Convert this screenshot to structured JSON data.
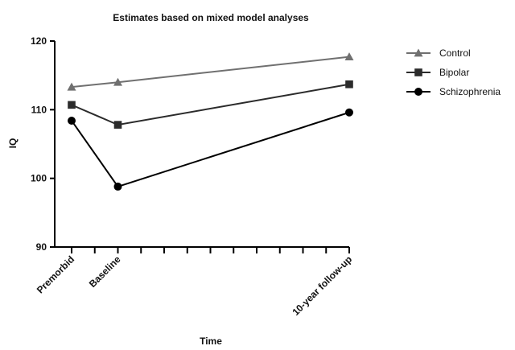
{
  "chart_data": {
    "type": "line",
    "title": "Estimates based on mixed model analyses",
    "xlabel": "Time",
    "ylabel": "IQ",
    "ylim": [
      90,
      120
    ],
    "yticks": [
      90,
      100,
      110,
      120
    ],
    "x_span": [
      0,
      12
    ],
    "categories": [
      {
        "label": "Premorbid",
        "x": 0
      },
      {
        "label": "Baseline",
        "x": 2
      },
      {
        "label": "10-year follow-up",
        "x": 12
      }
    ],
    "minor_x_ticks": [
      0,
      1,
      2,
      3,
      4,
      5,
      6,
      7,
      8,
      9,
      10,
      11,
      12
    ],
    "grid": false,
    "legend_position": "top-right",
    "series": [
      {
        "name": "Control",
        "marker": "triangle",
        "color": "#707070",
        "x": [
          0,
          2,
          12
        ],
        "values": [
          113.3,
          114.0,
          117.7
        ]
      },
      {
        "name": "Bipolar",
        "marker": "square",
        "color": "#2b2b2b",
        "x": [
          0,
          2,
          12
        ],
        "values": [
          110.7,
          107.8,
          113.7
        ]
      },
      {
        "name": "Schizophrenia",
        "marker": "circle",
        "color": "#000000",
        "x": [
          0,
          2,
          12
        ],
        "values": [
          108.4,
          98.8,
          109.6
        ]
      }
    ]
  }
}
